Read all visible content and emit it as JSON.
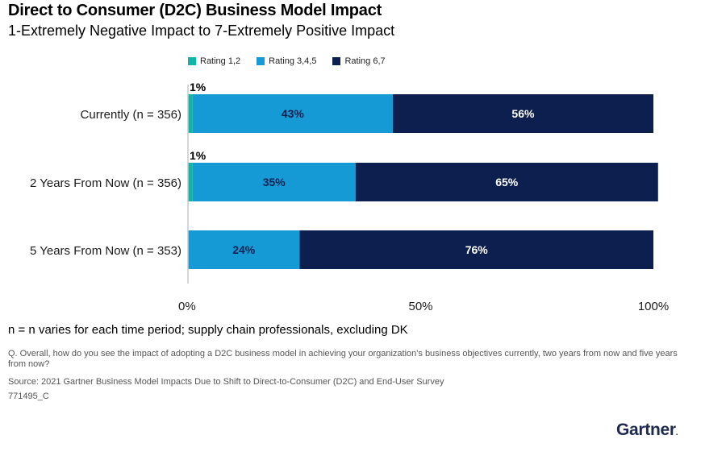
{
  "title": "Direct to Consumer (D2C) Business Model Impact",
  "subtitle": "1-Extremely Negative Impact to 7-Extremely Positive Impact",
  "footnote": "n = n varies for each time period; supply chain professionals, excluding DK",
  "question": "Q. Overall, how do you see the impact of adopting a D2C business model in achieving your organization's business objectives currently, two years from now and five years from now?",
  "source": "Source: 2021 Gartner Business Model Impacts Due to Shift to Direct-to-Consumer (D2C) and End-User Survey",
  "doc_id": "771495_C",
  "logo_text": "Gartner",
  "logo_mark": ".",
  "chart_data": {
    "type": "bar",
    "orientation": "horizontal",
    "stacked": true,
    "categories": [
      "Currently (n = 356)",
      "2 Years From Now (n = 356)",
      "5 Years From Now (n = 353)"
    ],
    "series": [
      {
        "name": "Rating 1,2",
        "color": "#12b5a5",
        "values": [
          1,
          1,
          0
        ],
        "labels": [
          "1%",
          "1%",
          ""
        ]
      },
      {
        "name": "Rating 3,4,5",
        "color": "#159ad6",
        "values": [
          43,
          35,
          24
        ],
        "labels": [
          "43%",
          "35%",
          "24%"
        ]
      },
      {
        "name": "Rating 6,7",
        "color": "#0c1f4e",
        "values": [
          56,
          65,
          76
        ],
        "labels": [
          "56%",
          "65%",
          "76%"
        ]
      }
    ],
    "xlim": [
      0,
      100
    ],
    "x_ticks": [
      0,
      50,
      100
    ],
    "x_tick_labels": [
      "0%",
      "50%",
      "100%"
    ],
    "legend_position": "top",
    "grid": false
  }
}
